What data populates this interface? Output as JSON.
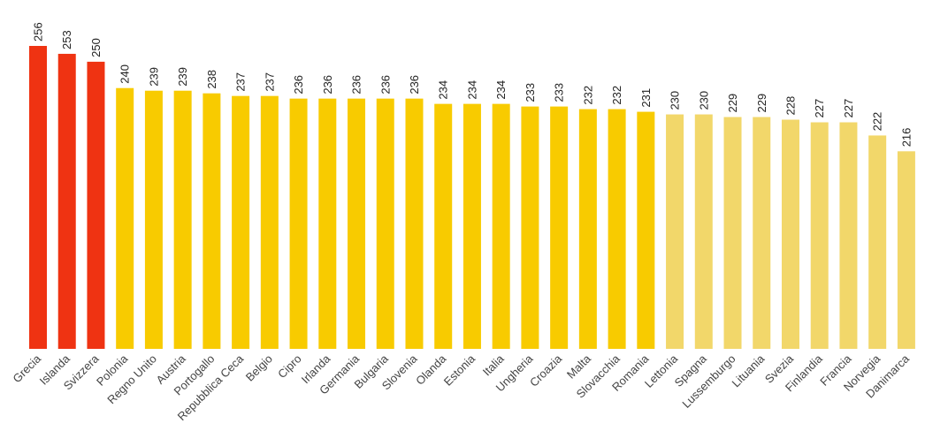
{
  "chart_data": {
    "type": "bar",
    "title": "",
    "xlabel": "",
    "ylabel": "",
    "ylim": [
      141,
      256
    ],
    "grid": false,
    "categories": [
      "Grecia",
      "Islanda",
      "Svizzera",
      "Polonia",
      "Regno Unito",
      "Austria",
      "Portogallo",
      "Repubblica Ceca",
      "Belgio",
      "Cipro",
      "Irlanda",
      "Germania",
      "Bulgaria",
      "Slovenia",
      "Olanda",
      "Estonia",
      "Italia",
      "Ungheria",
      "Croazia",
      "Malta",
      "Slovacchia",
      "Romania",
      "Lettonia",
      "Spagna",
      "Lussemburgo",
      "Lituania",
      "Svezia",
      "Finlandia",
      "Francia",
      "Norvegia",
      "Danimarca"
    ],
    "values": [
      256,
      253,
      250,
      240,
      239,
      239,
      238,
      237,
      237,
      236,
      236,
      236,
      236,
      236,
      234,
      234,
      234,
      233,
      233,
      232,
      232,
      231,
      230,
      230,
      229,
      229,
      228,
      227,
      227,
      222,
      216
    ],
    "color_groups": [
      "red",
      "red",
      "red",
      "yellow",
      "yellow",
      "yellow",
      "yellow",
      "yellow",
      "yellow",
      "yellow",
      "yellow",
      "yellow",
      "yellow",
      "yellow",
      "yellow",
      "yellow",
      "yellow",
      "yellow",
      "yellow",
      "yellow",
      "yellow",
      "yellow",
      "light",
      "light",
      "light",
      "light",
      "light",
      "light",
      "light",
      "light",
      "light"
    ],
    "colors": {
      "red": "#ef3312",
      "yellow": "#f8cb00",
      "light": "#f2d76a"
    }
  }
}
